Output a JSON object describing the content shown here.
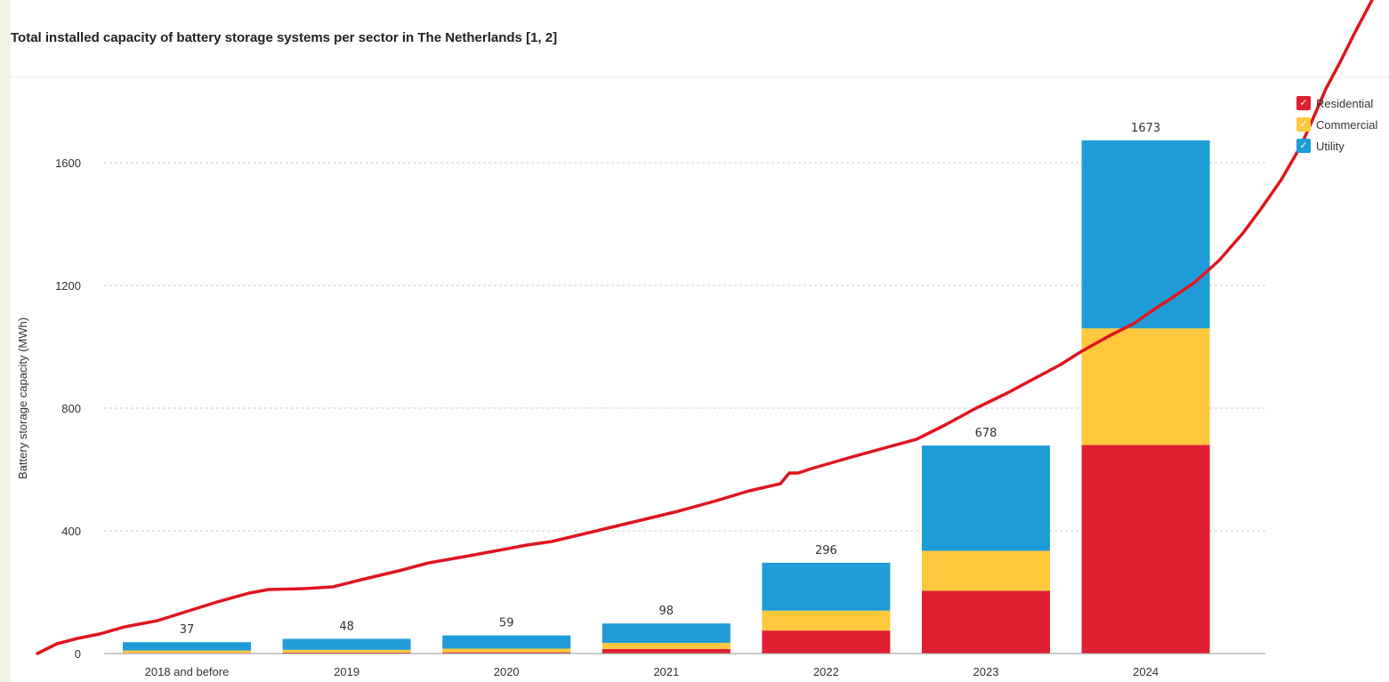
{
  "title": "Total installed capacity of battery storage systems per sector in The Netherlands [1, 2]",
  "legend": [
    {
      "label": "Residential",
      "check": "✓",
      "color": "#e02030"
    },
    {
      "label": "Commercial",
      "check": "✓",
      "color": "#fdc83c"
    },
    {
      "label": "Utility",
      "check": "✓",
      "color": "#1f9cd8"
    }
  ],
  "colors": {
    "residential": "#e02030",
    "commercial": "#fdc83c",
    "utility": "#1f9cd8",
    "annotation_line": "#e0141e"
  },
  "chart_data": {
    "type": "bar",
    "stacked": true,
    "title": "Total installed capacity of battery storage systems per sector in The Netherlands [1, 2]",
    "xlabel": "",
    "ylabel": "Battery storage capacity (MWh)",
    "categories": [
      "2018 and before",
      "2019",
      "2020",
      "2021",
      "2022",
      "2023",
      "2024"
    ],
    "series": [
      {
        "name": "Residential",
        "values": [
          2,
          3,
          4,
          15,
          75,
          205,
          680
        ]
      },
      {
        "name": "Commercial",
        "values": [
          8,
          9,
          12,
          20,
          65,
          130,
          380
        ]
      },
      {
        "name": "Utility",
        "values": [
          27,
          36,
          43,
          63,
          156,
          343,
          613
        ]
      }
    ],
    "totals": [
      37,
      48,
      59,
      98,
      296,
      678,
      1673
    ],
    "yticks": [
      0,
      400,
      800,
      1200,
      1600
    ],
    "ylim": [
      0,
      1780
    ],
    "grid": true,
    "legend_position": "top-right"
  }
}
